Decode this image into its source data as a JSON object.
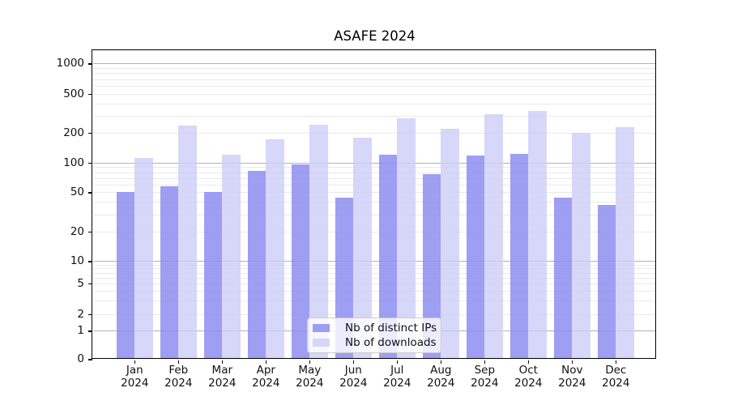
{
  "chart_data": {
    "type": "bar",
    "title": "ASAFE 2024",
    "categories": [
      "Jan",
      "Feb",
      "Mar",
      "Apr",
      "May",
      "Jun",
      "Jul",
      "Aug",
      "Sep",
      "Oct",
      "Nov",
      "Dec"
    ],
    "category_year": "2024",
    "yticks": [
      0,
      1,
      2,
      5,
      10,
      20,
      50,
      100,
      200,
      500,
      1000
    ],
    "ylim": [
      0,
      1370
    ],
    "yscale": "log-like (symlog with 0 at baseline)",
    "grid": "horizontal, dark major lines at decades + faint minor lines",
    "legend_position": "lower center",
    "series": [
      {
        "name": "Nb of distinct IPs",
        "color": "rgba(141,141,240,0.85)",
        "values": [
          50,
          57,
          50,
          83,
          96,
          44,
          120,
          77,
          118,
          122,
          44,
          37
        ]
      },
      {
        "name": "Nb of downloads",
        "color": "rgba(205,205,247,0.8)",
        "values": [
          112,
          237,
          120,
          172,
          243,
          178,
          280,
          218,
          307,
          335,
          198,
          228
        ]
      }
    ]
  },
  "colors": {
    "background": "#ffffff",
    "grid_major": "#b3b3b3",
    "grid_minor": "#eaeaea",
    "axis": "#000000"
  }
}
